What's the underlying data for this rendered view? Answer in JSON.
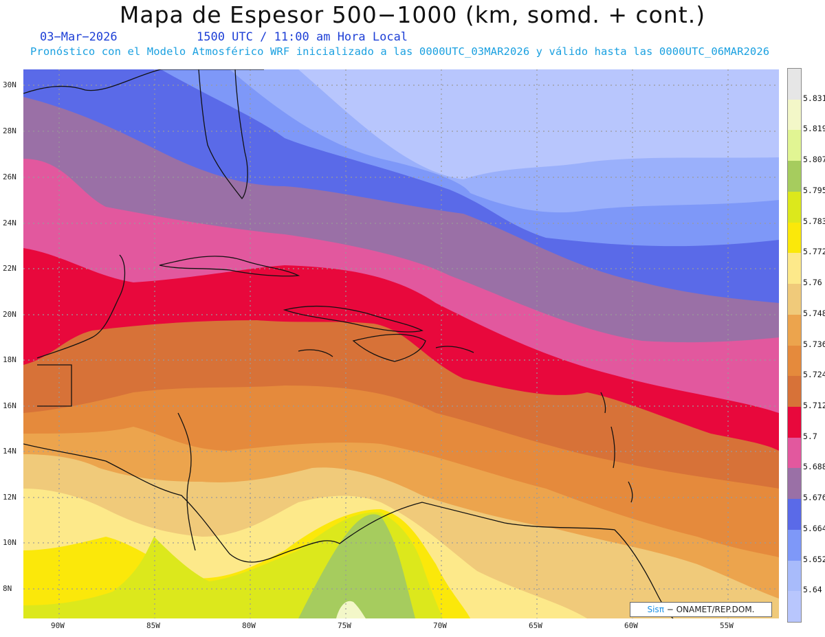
{
  "header": {
    "title": "Mapa de Espesor 500−1000 (km, somd. + cont.)",
    "date": "03−Mar−2026",
    "time": "1500 UTC / 11:00 am Hora Local",
    "description": "Pronóstico con el Modelo Atmosférico WRF inicializado a las 0000UTC_03MAR2026 y válido hasta las  0000UTC_06MAR2026"
  },
  "map": {
    "lat_labels": [
      "30N",
      "28N",
      "26N",
      "24N",
      "22N",
      "20N",
      "18N",
      "16N",
      "14N",
      "12N",
      "10N",
      "8N"
    ],
    "lon_labels": [
      "90W",
      "85W",
      "80W",
      "75W",
      "70W",
      "65W",
      "60W",
      "55W"
    ],
    "lat_range": [
      6.8,
      30.6
    ],
    "lon_range": [
      -91.8,
      -52.4
    ],
    "gridlines": true
  },
  "colorbar": {
    "labels": [
      "5.831",
      "5.819",
      "5.807",
      "5.795",
      "5.783",
      "5.772",
      "5.76",
      "5.748",
      "5.736",
      "5.724",
      "5.712",
      "5.7",
      "5.688",
      "5.676",
      "5.664",
      "5.652",
      "5.64"
    ],
    "colors": [
      "#e6e6e6",
      "#f3f7c8",
      "#e1f593",
      "#a6cc5e",
      "#dce81c",
      "#fbe80a",
      "#fde98a",
      "#f0ca7a",
      "#eca44d",
      "#e58a3c",
      "#d77238",
      "#e8083c",
      "#e2589e",
      "#9a70a6",
      "#5a6ae8",
      "#7e98f8",
      "#a8bbfb",
      "#b8c6fd"
    ]
  },
  "credit": {
    "logo": "Sisπ",
    "text": " − ONAMET/REP.DOM."
  }
}
